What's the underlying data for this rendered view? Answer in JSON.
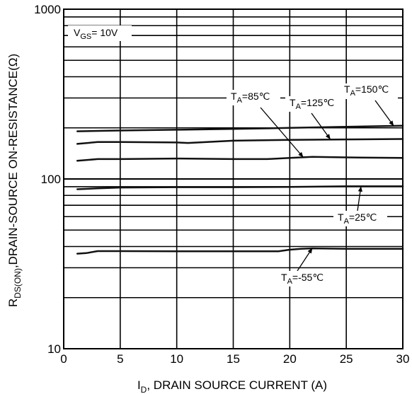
{
  "chart_data": {
    "type": "line",
    "x_axis": {
      "label_main": "I",
      "label_sub": "D",
      "label_rest": ", DRAIN SOURCE CURRENT (A)",
      "range": [
        0,
        30
      ],
      "ticks": [
        "0",
        "5",
        "10",
        "15",
        "20",
        "25",
        "30"
      ],
      "grid": true
    },
    "y_axis": {
      "label_main": "R",
      "label_sub": "DS(ON)",
      "label_rest": ",DRAIN-SOURCE ON-RESISTANCE(Ω)",
      "scale": "log",
      "range": [
        10,
        1000
      ],
      "ticks": [
        "10",
        "100",
        "1000"
      ],
      "grid": true
    },
    "condition": {
      "main": "V",
      "sub": "GS",
      "rest": "= 10V"
    },
    "series": [
      {
        "name_main": "T",
        "name_sub": "A",
        "name_rest": "=150℃",
        "x": [
          1.2,
          5,
          10,
          15,
          20,
          25,
          30
        ],
        "y": [
          191,
          193,
          195,
          197,
          200,
          203,
          206
        ]
      },
      {
        "name_main": "T",
        "name_sub": "A",
        "name_rest": "=125℃",
        "x": [
          1.2,
          3,
          5,
          10,
          11,
          15,
          20,
          25,
          30
        ],
        "y": [
          161,
          165,
          165,
          164,
          163,
          168,
          170,
          171,
          172
        ]
      },
      {
        "name_main": "T",
        "name_sub": "A",
        "name_rest": "=85℃",
        "x": [
          1.2,
          3,
          5,
          10,
          15,
          18,
          20,
          22,
          25,
          30
        ],
        "y": [
          128,
          131,
          131,
          132,
          131,
          131,
          133,
          135,
          134,
          133
        ]
      },
      {
        "name_main": "T",
        "name_sub": "A",
        "name_rest": "=25℃",
        "x": [
          1.2,
          3,
          5,
          10,
          15,
          20,
          25,
          30
        ],
        "y": [
          87,
          88,
          89,
          89.5,
          89.5,
          89.8,
          90.5,
          90.5
        ]
      },
      {
        "name_main": "T",
        "name_sub": "A",
        "name_rest": "=-55℃",
        "x": [
          1.2,
          2,
          3,
          5,
          10,
          15,
          19,
          20,
          21,
          22,
          25,
          30
        ],
        "y": [
          36.3,
          36.6,
          37.6,
          37.6,
          37.5,
          37.5,
          37.5,
          38.3,
          38.8,
          39,
          38.8,
          38.8
        ]
      }
    ]
  }
}
